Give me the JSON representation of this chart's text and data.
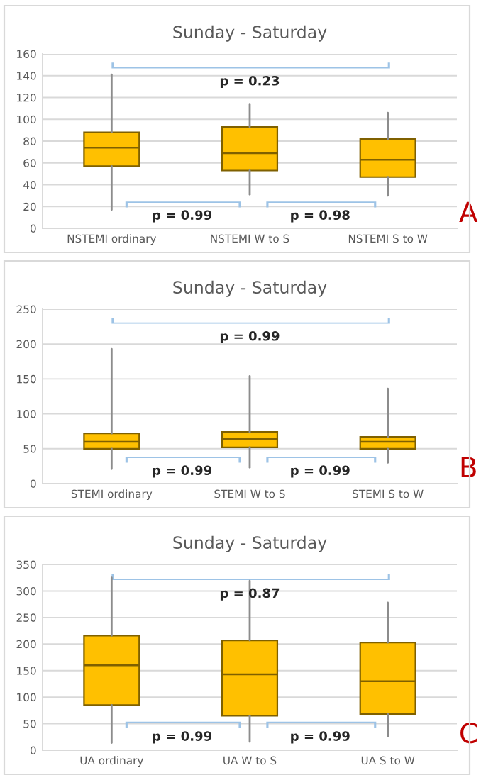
{
  "chart_data": [
    {
      "type": "box",
      "title": "Sunday - Saturday",
      "categories": [
        "NSTEMI ordinary",
        "NSTEMI W to S",
        "NSTEMI S to W"
      ],
      "color": "#ffc000",
      "ylim": [
        0,
        160
      ],
      "yticks": [
        0,
        20,
        40,
        60,
        80,
        100,
        120,
        140,
        160
      ],
      "grid": "y",
      "boxes": [
        {
          "low": 17,
          "q1": 57,
          "median": 74,
          "q3": 88,
          "high": 141
        },
        {
          "low": 31,
          "q1": 53,
          "median": 69,
          "q3": 93,
          "high": 114
        },
        {
          "low": 30,
          "q1": 47,
          "median": 63,
          "q3": 82,
          "high": 106
        }
      ],
      "annotations": [
        "p = 0.23",
        "p = 0.99",
        "p = 0.98",
        "A"
      ]
    },
    {
      "type": "box",
      "title": "Sunday - Saturday",
      "categories": [
        "STEMI ordinary",
        "STEMI W to S",
        "STEMI S to W"
      ],
      "color": "#ffc000",
      "ylim": [
        0,
        250
      ],
      "yticks": [
        0,
        50,
        100,
        150,
        200,
        250
      ],
      "grid": "y",
      "boxes": [
        {
          "low": 21,
          "q1": 50,
          "median": 60,
          "q3": 72,
          "high": 193
        },
        {
          "low": 23,
          "q1": 52,
          "median": 64,
          "q3": 74,
          "high": 154
        },
        {
          "low": 30,
          "q1": 50,
          "median": 60,
          "q3": 67,
          "high": 136
        }
      ],
      "annotations": [
        "p = 0.99",
        "p = 0.99",
        "p = 0.99",
        "B"
      ]
    },
    {
      "type": "box",
      "title": "Sunday - Saturday",
      "categories": [
        "UA ordinary",
        "UA W to S",
        "UA S to W"
      ],
      "color": "#ffc000",
      "ylim": [
        0,
        350
      ],
      "yticks": [
        0,
        50,
        100,
        150,
        200,
        250,
        300,
        350
      ],
      "grid": "y",
      "boxes": [
        {
          "low": 14,
          "q1": 85,
          "median": 160,
          "q3": 216,
          "high": 325
        },
        {
          "low": 16,
          "q1": 65,
          "median": 143,
          "q3": 207,
          "high": 319
        },
        {
          "low": 26,
          "q1": 68,
          "median": 130,
          "q3": 203,
          "high": 278
        }
      ],
      "annotations": [
        "p = 0.87",
        "p = 0.99",
        "p = 0.99",
        "C"
      ]
    }
  ]
}
